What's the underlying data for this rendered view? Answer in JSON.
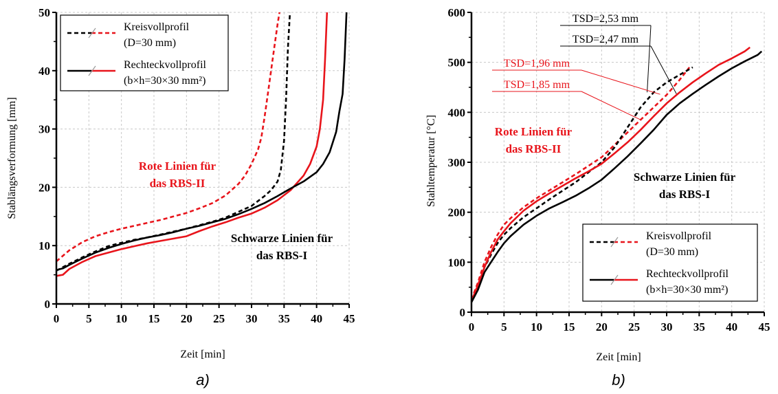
{
  "chart_data": [
    {
      "type": "line",
      "panel_label": "a)",
      "xlabel": "Zeit [min]",
      "ylabel": "Stablängsverformung [mm]",
      "xlim": [
        0,
        45
      ],
      "ylim": [
        0,
        50
      ],
      "xticks": [
        0,
        5,
        10,
        15,
        20,
        25,
        30,
        35,
        40,
        45
      ],
      "yticks": [
        0,
        10,
        20,
        30,
        40,
        50
      ],
      "grid": true,
      "legend_position": "top-left",
      "legend": [
        {
          "label": "Kreisvollprofil",
          "sublabel": "(D=30 mm)",
          "style": "dashed"
        },
        {
          "label": "Rechteckvollprofil",
          "sublabel": "(b×h=30×30 mm²)",
          "style": "solid"
        }
      ],
      "annotations": [
        {
          "lines": [
            "Rote Linien für",
            "das RBS-II"
          ],
          "color": "#e8141b"
        },
        {
          "lines": [
            "Schwarze Linien für",
            "das RBS-I"
          ],
          "color": "#000000"
        }
      ],
      "series": [
        {
          "color": "#e8141b",
          "style": "dashed",
          "x": [
            0,
            2,
            4,
            6,
            8,
            10,
            12,
            14,
            16,
            18,
            20,
            22,
            24,
            26,
            28,
            29,
            30,
            31,
            31.5,
            32,
            32.5,
            33,
            33.5,
            34,
            34.3
          ],
          "y": [
            7.3,
            9.2,
            10.6,
            11.6,
            12.3,
            12.9,
            13.4,
            13.9,
            14.4,
            15.0,
            15.6,
            16.4,
            17.3,
            18.6,
            20.6,
            22.0,
            24.0,
            26.5,
            28.5,
            32.0,
            36.0,
            40.0,
            44.0,
            48.0,
            50.0
          ]
        },
        {
          "color": "#000000",
          "style": "dashed",
          "x": [
            0,
            2,
            4,
            6,
            8,
            10,
            12,
            14,
            16,
            18,
            20,
            22,
            24,
            26,
            28,
            30,
            32,
            33,
            34,
            34.5,
            35,
            35.3,
            35.6,
            35.9
          ],
          "y": [
            5.7,
            6.9,
            8.0,
            9.0,
            9.9,
            10.5,
            11.0,
            11.4,
            11.9,
            12.4,
            12.9,
            13.5,
            14.1,
            14.8,
            15.8,
            16.8,
            18.5,
            19.5,
            21.0,
            23.0,
            28.0,
            35.0,
            44.0,
            50.0
          ]
        },
        {
          "color": "#e8141b",
          "style": "solid",
          "x": [
            0,
            1,
            2,
            4,
            6,
            8,
            10,
            12,
            14,
            16,
            18,
            20,
            22,
            24,
            26,
            28,
            30,
            32,
            34,
            36,
            38,
            39,
            40,
            40.5,
            41,
            41.3,
            41.6
          ],
          "y": [
            4.8,
            5.0,
            6.0,
            7.2,
            8.2,
            8.8,
            9.4,
            9.9,
            10.4,
            10.8,
            11.2,
            11.6,
            12.5,
            13.3,
            14.0,
            14.8,
            15.5,
            16.5,
            17.8,
            19.5,
            22.0,
            24.0,
            27.0,
            30.0,
            35.0,
            42.0,
            50.0
          ]
        },
        {
          "color": "#000000",
          "style": "solid",
          "x": [
            0,
            1,
            2,
            4,
            6,
            8,
            10,
            12,
            14,
            16,
            18,
            20,
            22,
            24,
            26,
            28,
            30,
            32,
            34,
            36,
            38,
            40,
            41,
            42,
            43,
            43.5,
            44,
            44.3,
            44.6
          ],
          "y": [
            5.8,
            6.1,
            6.7,
            7.8,
            8.8,
            9.6,
            10.3,
            10.9,
            11.4,
            11.8,
            12.3,
            12.9,
            13.4,
            14.0,
            14.6,
            15.4,
            16.3,
            17.3,
            18.5,
            19.8,
            21.0,
            22.6,
            24.0,
            26.0,
            29.5,
            33.0,
            36.0,
            42.0,
            50.0
          ]
        }
      ]
    },
    {
      "type": "line",
      "panel_label": "b)",
      "xlabel": "Zeit [min]",
      "ylabel": "Stahltemperatur  [°C]",
      "xlim": [
        0,
        45
      ],
      "ylim": [
        0,
        600
      ],
      "xticks": [
        0,
        5,
        10,
        15,
        20,
        25,
        30,
        35,
        40,
        45
      ],
      "yticks": [
        0,
        100,
        200,
        300,
        400,
        500,
        600
      ],
      "grid": true,
      "legend_position": "bottom-right",
      "legend": [
        {
          "label": "Kreisvollprofil",
          "sublabel": "(D=30 mm)",
          "style": "dashed"
        },
        {
          "label": "Rechteckvollprofil",
          "sublabel": "(b×h=30×30 mm²)",
          "style": "solid"
        }
      ],
      "annotations": [
        {
          "lines": [
            "Rote Linien für",
            "das RBS-II"
          ],
          "color": "#e8141b"
        },
        {
          "lines": [
            "Schwarze Linien für",
            "das RBS-I"
          ],
          "color": "#000000"
        }
      ],
      "tsd_labels": [
        {
          "text": "TSD=2,53 mm",
          "color": "#000000",
          "target": [
            27,
            440
          ]
        },
        {
          "text": "TSD=2,47 mm",
          "color": "#000000",
          "target": [
            31.5,
            437
          ]
        },
        {
          "text": "TSD=1,96 mm",
          "color": "#e8141b",
          "target": [
            29,
            436
          ]
        },
        {
          "text": "TSD=1,85 mm",
          "color": "#e8141b",
          "target": [
            26,
            385
          ]
        }
      ],
      "series": [
        {
          "color": "#e8141b",
          "style": "dashed",
          "x": [
            0,
            1,
            2,
            3,
            4,
            5,
            6,
            8,
            10,
            12,
            14,
            16,
            18,
            20,
            22,
            24,
            26,
            28,
            30,
            32,
            33.5
          ],
          "y": [
            25,
            60,
            100,
            130,
            155,
            175,
            188,
            210,
            228,
            244,
            260,
            276,
            293,
            310,
            335,
            360,
            385,
            410,
            435,
            465,
            490
          ]
        },
        {
          "color": "#000000",
          "style": "dashed",
          "x": [
            0,
            1,
            2,
            3,
            4,
            5,
            6,
            8,
            10,
            12,
            14,
            16,
            18,
            20,
            22,
            24,
            26,
            28,
            30,
            32,
            34
          ],
          "y": [
            20,
            50,
            90,
            115,
            138,
            155,
            168,
            190,
            208,
            226,
            243,
            260,
            280,
            300,
            330,
            370,
            410,
            440,
            460,
            475,
            490
          ]
        },
        {
          "color": "#e8141b",
          "style": "solid",
          "x": [
            0,
            1,
            2,
            3,
            4,
            5,
            6,
            8,
            10,
            12,
            14,
            16,
            18,
            20,
            22,
            24,
            26,
            28,
            30,
            32,
            34,
            36,
            38,
            40,
            42,
            42.8
          ],
          "y": [
            22,
            55,
            90,
            120,
            145,
            162,
            178,
            203,
            222,
            238,
            253,
            268,
            282,
            297,
            318,
            340,
            365,
            392,
            418,
            440,
            460,
            478,
            495,
            508,
            522,
            530
          ]
        },
        {
          "color": "#000000",
          "style": "solid",
          "x": [
            0,
            1,
            2,
            3,
            4,
            5,
            6,
            8,
            10,
            12,
            14,
            16,
            18,
            20,
            22,
            24,
            26,
            28,
            30,
            32,
            34,
            36,
            38,
            40,
            42,
            44,
            44.6
          ],
          "y": [
            20,
            45,
            80,
            100,
            120,
            138,
            152,
            175,
            193,
            208,
            220,
            233,
            248,
            265,
            288,
            312,
            338,
            365,
            395,
            418,
            437,
            455,
            472,
            488,
            502,
            515,
            522
          ]
        }
      ]
    }
  ]
}
